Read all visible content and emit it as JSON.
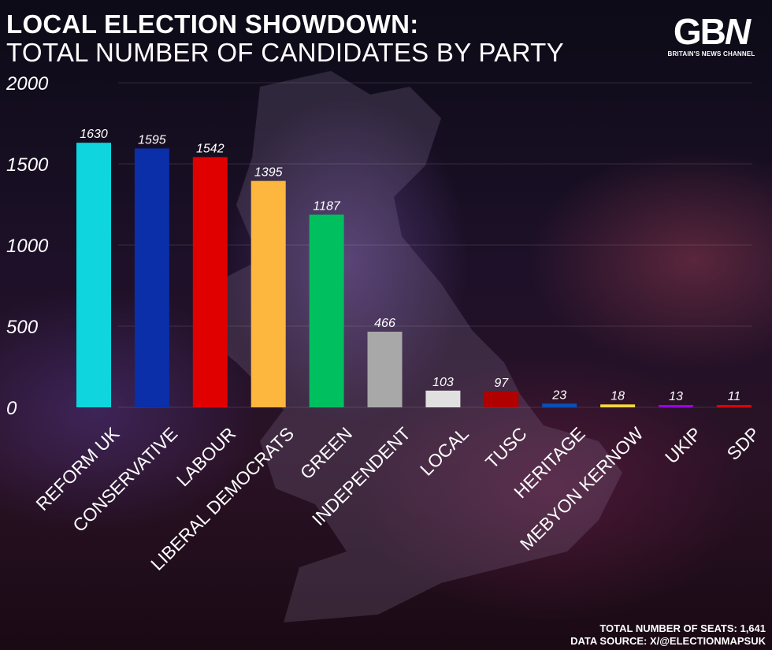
{
  "header": {
    "title_line1": "LOCAL ELECTION SHOWDOWN:",
    "title_line2": "TOTAL NUMBER OF CANDIDATES BY PARTY"
  },
  "logo": {
    "mark": "GBN",
    "tagline": "BRITAIN'S NEWS CHANNEL"
  },
  "footer": {
    "seats": "TOTAL NUMBER OF SEATS: 1,641",
    "source": "DATA SOURCE: X/@ELECTIONMAPSUK"
  },
  "chart_data": {
    "type": "bar",
    "title": "LOCAL ELECTION SHOWDOWN: TOTAL NUMBER OF CANDIDATES BY PARTY",
    "categories": [
      "REFORM UK",
      "CONSERVATIVE",
      "LABOUR",
      "LIBERAL DEMOCRATS",
      "GREEN",
      "INDEPENDENT",
      "LOCAL",
      "TUSC",
      "HERITAGE",
      "MEBYON KERNOW",
      "UKIP",
      "SDP"
    ],
    "values": [
      1630,
      1595,
      1542,
      1395,
      1187,
      466,
      103,
      97,
      23,
      18,
      13,
      11
    ],
    "colors": [
      "#0fd6de",
      "#0a2fa8",
      "#e00000",
      "#fdb73e",
      "#00bf5f",
      "#a8a8a8",
      "#e0e0e0",
      "#b00000",
      "#0a4fb8",
      "#f5d63d",
      "#9a00e6",
      "#e00000"
    ],
    "yticks": [
      0,
      500,
      1000,
      1500,
      2000
    ],
    "ylim": [
      0,
      2000
    ],
    "grid": true,
    "xlabel": "",
    "ylabel": ""
  }
}
